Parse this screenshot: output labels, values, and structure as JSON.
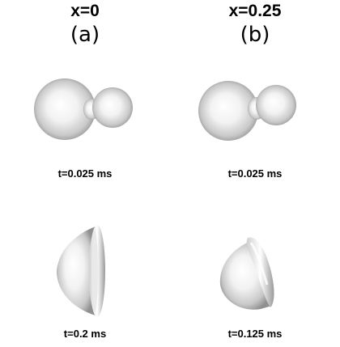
{
  "columns": [
    {
      "header": "x=0",
      "panel": "(a)",
      "frames": [
        {
          "caption": "t=0.025 ms",
          "shape": "two-bubbles-merging"
        },
        {
          "caption": "t=0.2 ms",
          "shape": "flattened-cap"
        }
      ]
    },
    {
      "header": "x=0.25",
      "panel": "(b)",
      "frames": [
        {
          "caption": "t=0.025 ms",
          "shape": "two-bubbles-merging"
        },
        {
          "caption": "t=0.125 ms",
          "shape": "tilted-cap"
        }
      ]
    }
  ]
}
